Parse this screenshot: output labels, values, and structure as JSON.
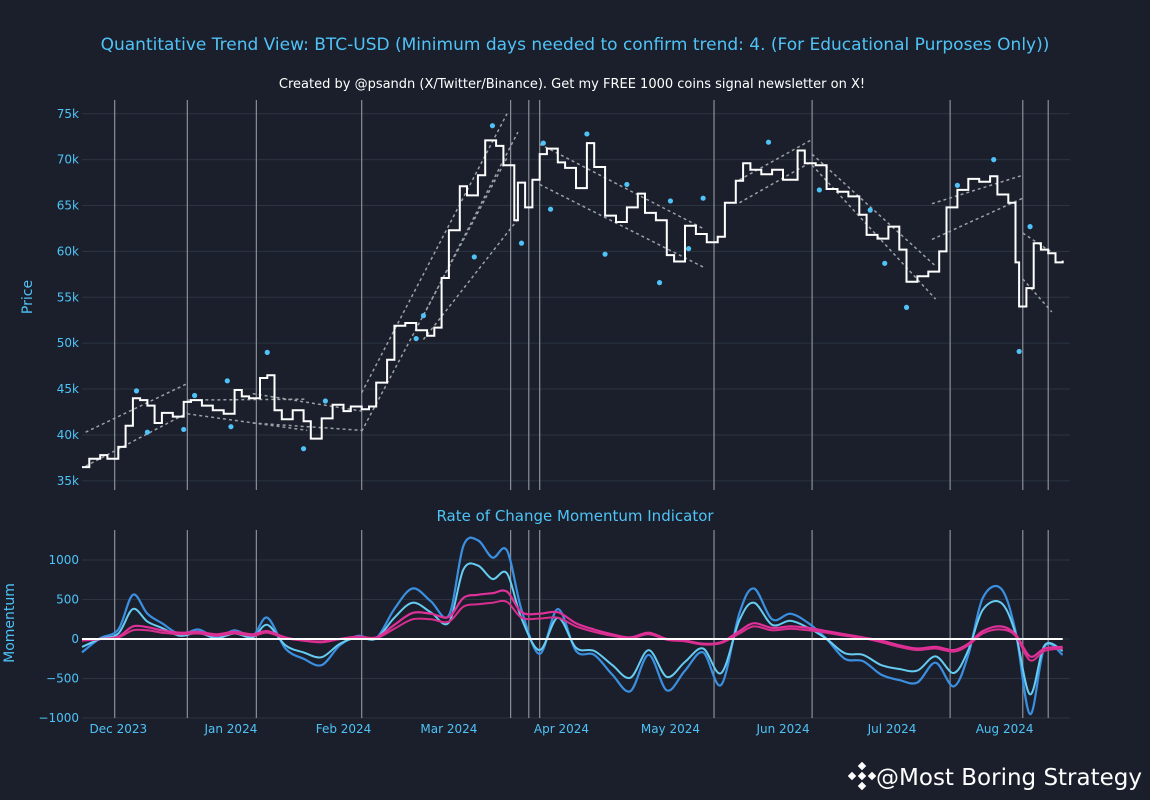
{
  "colors": {
    "background": "#1a1f2b",
    "grid": "#2c3442",
    "accent": "#4fc3f7",
    "price": "#ffffff",
    "channel": "#9aa0a6",
    "dots": "#4fc3f7",
    "roc_fast_outer": "#3b8fe0",
    "roc_fast_inner": "#66ccf2",
    "roc_slow_outer": "#e0309a",
    "roc_slow_inner": "#d82f8f",
    "zero_line": "#ffffff",
    "vlines": "#8a8f98"
  },
  "header": {
    "title": "Quantitative Trend View: BTC-USD (Minimum days needed to confirm trend: 4. (For Educational Purposes Only))",
    "subtitle": "Created by @psandn (X/Twitter/Binance). Get my FREE 1000 coins signal newsletter on X!"
  },
  "watermark": {
    "icon": "binance-icon",
    "text": "@Most Boring Strategy"
  },
  "chart_data": [
    {
      "type": "line",
      "ylabel": "Price",
      "ylim": [
        34000,
        76500
      ],
      "yticks": [
        35000,
        40000,
        45000,
        50000,
        55000,
        60000,
        65000,
        70000,
        75000
      ],
      "ytick_labels": [
        "35k",
        "40k",
        "45k",
        "50k",
        "55k",
        "60k",
        "65k",
        "70k",
        "75k"
      ],
      "xlim": [
        "2023-11-21",
        "2024-08-19"
      ],
      "grid": true,
      "series": [
        {
          "style": "step",
          "x": [
            "2023-11-21",
            "2023-11-23",
            "2023-11-26",
            "2023-11-28",
            "2023-12-01",
            "2023-12-03",
            "2023-12-05",
            "2023-12-07",
            "2023-12-09",
            "2023-12-11",
            "2023-12-13",
            "2023-12-16",
            "2023-12-19",
            "2023-12-21",
            "2023-12-24",
            "2023-12-27",
            "2023-12-30",
            "2024-01-02",
            "2024-01-04",
            "2024-01-06",
            "2024-01-09",
            "2024-01-11",
            "2024-01-13",
            "2024-01-15",
            "2024-01-18",
            "2024-01-21",
            "2024-01-23",
            "2024-01-26",
            "2024-01-29",
            "2024-02-01",
            "2024-02-03",
            "2024-02-06",
            "2024-02-08",
            "2024-02-10",
            "2024-02-13",
            "2024-02-15",
            "2024-02-18",
            "2024-02-21",
            "2024-02-24",
            "2024-02-26",
            "2024-02-28",
            "2024-03-01",
            "2024-03-04",
            "2024-03-06",
            "2024-03-09",
            "2024-03-11",
            "2024-03-14",
            "2024-03-16",
            "2024-03-19",
            "2024-03-20",
            "2024-03-22",
            "2024-03-24",
            "2024-03-26",
            "2024-03-28",
            "2024-03-31",
            "2024-04-02",
            "2024-04-05",
            "2024-04-08",
            "2024-04-10",
            "2024-04-13",
            "2024-04-16",
            "2024-04-19",
            "2024-04-22",
            "2024-04-24",
            "2024-04-27",
            "2024-04-30",
            "2024-05-02",
            "2024-05-05",
            "2024-05-08",
            "2024-05-11",
            "2024-05-14",
            "2024-05-16",
            "2024-05-19",
            "2024-05-21",
            "2024-05-23",
            "2024-05-26",
            "2024-05-29",
            "2024-06-01",
            "2024-06-05",
            "2024-06-07",
            "2024-06-10",
            "2024-06-13",
            "2024-06-16",
            "2024-06-19",
            "2024-06-22",
            "2024-06-24",
            "2024-06-27",
            "2024-06-30",
            "2024-07-03",
            "2024-07-05",
            "2024-07-08",
            "2024-07-11",
            "2024-07-14",
            "2024-07-16",
            "2024-07-19",
            "2024-07-22",
            "2024-07-25",
            "2024-07-28",
            "2024-07-30",
            "2024-08-02",
            "2024-08-04",
            "2024-08-05",
            "2024-08-07",
            "2024-08-09",
            "2024-08-11",
            "2024-08-13",
            "2024-08-15",
            "2024-08-17"
          ],
          "y": [
            36500,
            37400,
            37800,
            37400,
            38700,
            41000,
            44000,
            43800,
            43200,
            41300,
            42400,
            42000,
            43600,
            43800,
            43200,
            42700,
            42300,
            44900,
            44200,
            44000,
            46200,
            46500,
            42700,
            41700,
            42700,
            41500,
            39600,
            41800,
            43300,
            42600,
            43100,
            42800,
            43100,
            45700,
            48200,
            51900,
            52200,
            51400,
            50800,
            51700,
            57100,
            62300,
            67100,
            66100,
            68300,
            72100,
            71500,
            69400,
            63400,
            67500,
            64800,
            67800,
            70600,
            71200,
            69700,
            69100,
            66900,
            71800,
            69200,
            63900,
            63200,
            64800,
            66300,
            64200,
            63400,
            59600,
            58900,
            62800,
            61900,
            61000,
            61600,
            65300,
            67700,
            69600,
            68900,
            68400,
            68900,
            67800,
            71000,
            69600,
            69400,
            66800,
            66500,
            66000,
            64000,
            61800,
            61400,
            62700,
            60200,
            56700,
            57300,
            57800,
            60000,
            64800,
            66700,
            67900,
            67600,
            68200,
            66200,
            65300,
            58800,
            54000,
            56000,
            60900,
            60200,
            59800,
            58800,
            59000
          ]
        }
      ],
      "scatter_points": {
        "x": [
          "2023-12-06",
          "2023-12-09",
          "2023-12-19",
          "2023-12-22",
          "2023-12-31",
          "2024-01-01",
          "2024-01-11",
          "2024-01-21",
          "2024-01-27",
          "2024-02-21",
          "2024-02-23",
          "2024-03-08",
          "2024-03-13",
          "2024-03-21",
          "2024-03-27",
          "2024-03-29",
          "2024-04-08",
          "2024-04-13",
          "2024-04-19",
          "2024-04-28",
          "2024-05-01",
          "2024-05-06",
          "2024-05-10",
          "2024-05-28",
          "2024-06-11",
          "2024-06-25",
          "2024-06-29",
          "2024-07-05",
          "2024-07-19",
          "2024-07-29",
          "2024-08-05",
          "2024-08-08"
        ],
        "y": [
          44800,
          40300,
          40600,
          44300,
          45900,
          40900,
          49000,
          38500,
          43700,
          50500,
          53000,
          59400,
          73700,
          60900,
          71800,
          64600,
          72800,
          59700,
          67300,
          56600,
          65500,
          60300,
          65800,
          71900,
          66700,
          64500,
          58700,
          53900,
          67200,
          70000,
          49100,
          62700
        ]
      },
      "channels": [
        {
          "x": [
            "2023-11-22",
            "2023-12-20"
          ],
          "upper": [
            40300,
            45600
          ],
          "lower": [
            36600,
            42400
          ]
        },
        {
          "x": [
            "2023-12-20",
            "2024-01-22"
          ],
          "upper": [
            43800,
            43900
          ],
          "lower": [
            42300,
            40500
          ]
        },
        {
          "x": [
            "2024-01-07",
            "2024-02-06"
          ],
          "upper": [
            44500,
            42600
          ],
          "lower": [
            41300,
            40500
          ]
        },
        {
          "x": [
            "2024-02-06",
            "2024-03-17"
          ],
          "upper": [
            44600,
            75000
          ],
          "lower": [
            40400,
            70200
          ]
        },
        {
          "x": [
            "2024-02-23",
            "2024-03-20"
          ],
          "upper": [
            53000,
            73000
          ],
          "lower": [
            50400,
            63500
          ]
        },
        {
          "x": [
            "2024-03-26",
            "2024-05-10"
          ],
          "upper": [
            71700,
            62500
          ],
          "lower": [
            67300,
            58300
          ]
        },
        {
          "x": [
            "2024-05-20",
            "2024-06-09"
          ],
          "upper": [
            67800,
            72200
          ],
          "lower": [
            65300,
            69800
          ]
        },
        {
          "x": [
            "2024-06-09",
            "2024-07-13"
          ],
          "upper": [
            70600,
            58400
          ],
          "lower": [
            69400,
            54800
          ]
        },
        {
          "x": [
            "2024-07-12",
            "2024-08-06"
          ],
          "upper": [
            65200,
            68300
          ],
          "lower": [
            61300,
            65800
          ]
        },
        {
          "x": [
            "2024-08-06",
            "2024-08-14"
          ],
          "upper": [
            62000,
            59900
          ],
          "lower": [
            57000,
            53400
          ]
        }
      ],
      "vlines": [
        "2023-11-30",
        "2023-12-20",
        "2024-01-08",
        "2024-02-06",
        "2024-03-18",
        "2024-03-23",
        "2024-03-26",
        "2024-05-13",
        "2024-06-09",
        "2024-07-17",
        "2024-08-06",
        "2024-08-13"
      ]
    },
    {
      "type": "line",
      "title": "Rate of Change Momentum Indicator",
      "ylabel": "Momentum",
      "ylim": [
        -1000,
        1380
      ],
      "yticks": [
        1000,
        500,
        0,
        -500,
        -1000
      ],
      "ytick_labels": [
        "1000",
        "500",
        "0",
        "−500",
        "−1000"
      ],
      "xticks": [
        "2023-12-01",
        "2024-01-01",
        "2024-02-01",
        "2024-03-01",
        "2024-04-01",
        "2024-05-01",
        "2024-06-01",
        "2024-07-01",
        "2024-08-01"
      ],
      "xtick_labels": [
        "Dec 2023",
        "Jan 2024",
        "Feb 2024",
        "Mar 2024",
        "Apr 2024",
        "May 2024",
        "Jun 2024",
        "Jul 2024",
        "Aug 2024"
      ],
      "zero_line_end": "2024-08-17",
      "series_x": [
        "2023-11-21",
        "2023-11-26",
        "2023-12-01",
        "2023-12-05",
        "2023-12-09",
        "2023-12-13",
        "2023-12-18",
        "2023-12-23",
        "2023-12-28",
        "2024-01-02",
        "2024-01-07",
        "2024-01-11",
        "2024-01-16",
        "2024-01-21",
        "2024-01-26",
        "2024-01-31",
        "2024-02-05",
        "2024-02-10",
        "2024-02-15",
        "2024-02-20",
        "2024-02-25",
        "2024-03-01",
        "2024-03-05",
        "2024-03-09",
        "2024-03-13",
        "2024-03-17",
        "2024-03-21",
        "2024-03-26",
        "2024-03-31",
        "2024-04-05",
        "2024-04-10",
        "2024-04-15",
        "2024-04-20",
        "2024-04-25",
        "2024-04-30",
        "2024-05-05",
        "2024-05-10",
        "2024-05-15",
        "2024-05-20",
        "2024-05-24",
        "2024-05-29",
        "2024-06-03",
        "2024-06-08",
        "2024-06-13",
        "2024-06-18",
        "2024-06-23",
        "2024-06-28",
        "2024-07-03",
        "2024-07-08",
        "2024-07-13",
        "2024-07-18",
        "2024-07-22",
        "2024-07-26",
        "2024-07-31",
        "2024-08-04",
        "2024-08-08",
        "2024-08-12",
        "2024-08-17"
      ],
      "series": [
        {
          "values": [
            -170,
            10,
            120,
            560,
            320,
            200,
            60,
            120,
            20,
            110,
            40,
            270,
            -120,
            -250,
            -330,
            -80,
            40,
            10,
            380,
            640,
            480,
            300,
            1180,
            1250,
            1030,
            1120,
            370,
            -190,
            380,
            -150,
            -200,
            -450,
            -660,
            -200,
            -650,
            -400,
            -170,
            -580,
            330,
            640,
            250,
            320,
            200,
            0,
            -250,
            -280,
            -450,
            -520,
            -550,
            -300,
            -600,
            -200,
            520,
            640,
            100,
            -950,
            -100,
            -200
          ]
        },
        {
          "values": [
            -100,
            0,
            70,
            380,
            220,
            140,
            40,
            80,
            10,
            70,
            20,
            180,
            -80,
            -170,
            -230,
            -60,
            20,
            5,
            270,
            460,
            340,
            210,
            880,
            930,
            760,
            830,
            260,
            -140,
            270,
            -110,
            -150,
            -330,
            -490,
            -140,
            -480,
            -290,
            -120,
            -430,
            240,
            460,
            180,
            230,
            140,
            0,
            -180,
            -200,
            -330,
            -380,
            -400,
            -220,
            -430,
            -140,
            370,
            460,
            70,
            -700,
            -80,
            -150
          ]
        },
        {
          "values": [
            -20,
            0,
            30,
            160,
            150,
            110,
            80,
            90,
            60,
            90,
            60,
            100,
            20,
            -20,
            -40,
            0,
            30,
            20,
            180,
            330,
            320,
            280,
            520,
            560,
            580,
            600,
            340,
            320,
            340,
            200,
            120,
            60,
            20,
            80,
            0,
            -20,
            -60,
            -40,
            100,
            200,
            140,
            160,
            140,
            100,
            60,
            20,
            -20,
            -80,
            -120,
            -100,
            -140,
            -60,
            100,
            160,
            60,
            -220,
            -120,
            -100
          ]
        },
        {
          "values": [
            -10,
            0,
            20,
            110,
            110,
            80,
            60,
            70,
            40,
            70,
            40,
            80,
            10,
            -20,
            -30,
            0,
            20,
            10,
            130,
            250,
            250,
            220,
            410,
            440,
            460,
            470,
            270,
            260,
            270,
            160,
            90,
            40,
            10,
            60,
            -10,
            -30,
            -70,
            -50,
            70,
            160,
            110,
            130,
            110,
            80,
            40,
            10,
            -40,
            -100,
            -140,
            -120,
            -160,
            -80,
            70,
            120,
            40,
            -270,
            -150,
            -120
          ]
        }
      ],
      "vlines": [
        "2023-11-30",
        "2023-12-20",
        "2024-01-08",
        "2024-02-06",
        "2024-03-18",
        "2024-03-23",
        "2024-03-26",
        "2024-05-13",
        "2024-06-09",
        "2024-07-17",
        "2024-08-06",
        "2024-08-13"
      ]
    }
  ]
}
